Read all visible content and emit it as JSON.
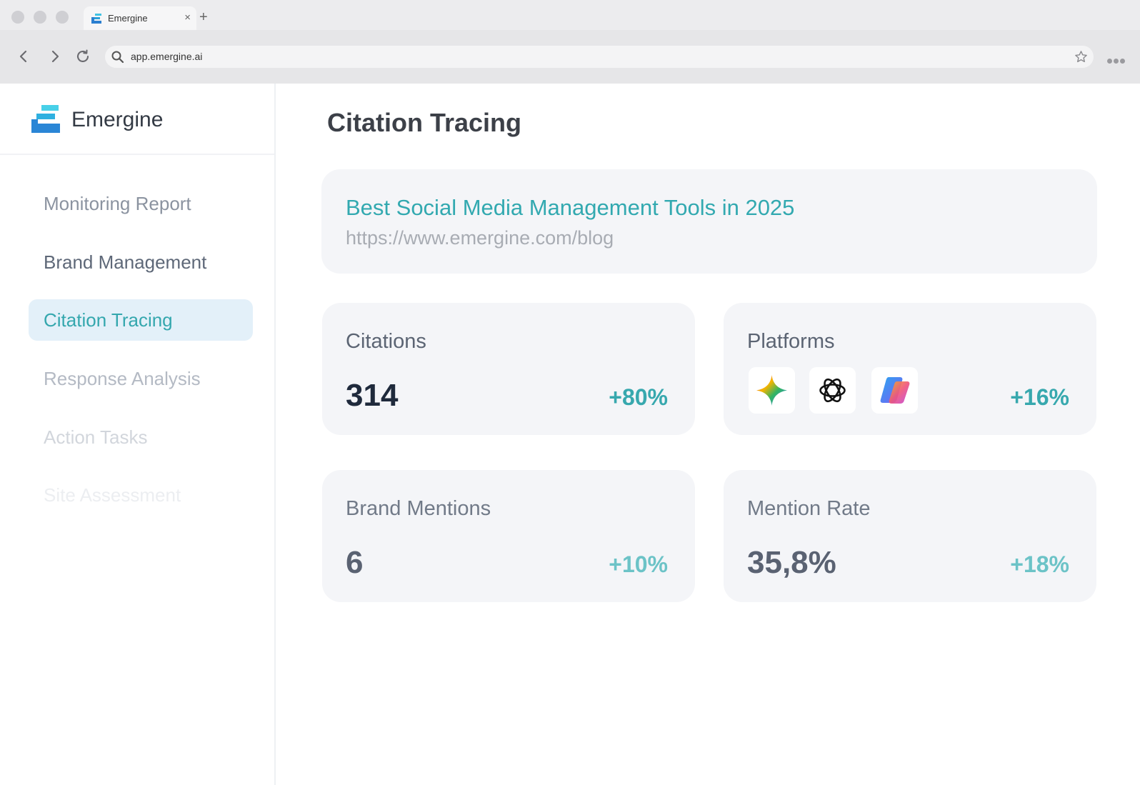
{
  "browser": {
    "tab_title": "Emergine",
    "tab_close": "×",
    "new_tab": "+",
    "url": "app.emergine.ai",
    "icons": [
      "back-arrow-icon",
      "forward-arrow-icon",
      "reload-icon",
      "search-icon",
      "star-icon",
      "more-icon"
    ]
  },
  "sidebar": {
    "brand_name": "Emergine",
    "items": [
      {
        "label": "Monitoring Report"
      },
      {
        "label": "Brand Management"
      },
      {
        "label": "Citation Tracing",
        "active": true
      },
      {
        "label": "Response Analysis"
      },
      {
        "label": "Action Tasks"
      },
      {
        "label": "Site Assessment"
      }
    ]
  },
  "main": {
    "page_title": "Citation Tracing",
    "source": {
      "title": "Best Social Media Management Tools in 2025",
      "url": "https://www.emergine.com/blog"
    },
    "stats": {
      "citations": {
        "label": "Citations",
        "value": "314",
        "change": "+80%"
      },
      "platforms": {
        "label": "Platforms",
        "change": "+16%",
        "icons": [
          "gemini-icon",
          "openai-icon",
          "copilot-icon"
        ]
      },
      "brand_mentions": {
        "label": "Brand Mentions",
        "value": "6",
        "change": "+10%"
      },
      "mention_rate": {
        "label": "Mention Rate",
        "value": "35,8%",
        "change": "+18%"
      }
    }
  },
  "colors": {
    "accent": "#32a9b0",
    "active_nav_bg": "#e3f0f9",
    "card_bg": "#f4f5f8"
  }
}
